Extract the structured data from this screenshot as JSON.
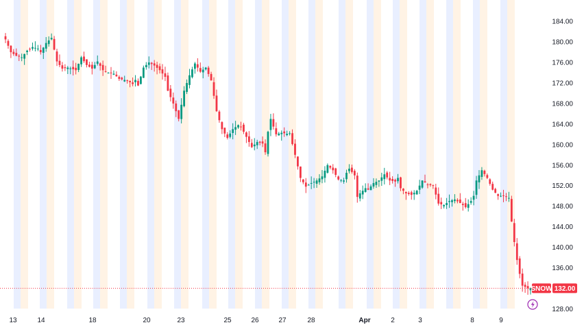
{
  "chart_data": {
    "type": "candlestick",
    "symbol": "SNOW",
    "last_price": 132.0,
    "last_price_label": "132.00",
    "ylim": [
      126.5,
      185.5
    ],
    "y_ticks": [
      128,
      132,
      136,
      140,
      144,
      148,
      152,
      156,
      160,
      164,
      168,
      172,
      176,
      180,
      184
    ],
    "y_tick_labels": [
      "128.00",
      "132.00",
      "136.00",
      "140.00",
      "144.00",
      "148.00",
      "152.00",
      "156.00",
      "160.00",
      "164.00",
      "168.00",
      "172.00",
      "176.00",
      "180.00",
      "184.00"
    ],
    "x_tick_labels": [
      "13",
      "14",
      "18",
      "20",
      "23",
      "25",
      "26",
      "27",
      "28",
      "Apr",
      "2",
      "3",
      "8",
      "9"
    ],
    "x_tick_emphasis": [
      false,
      false,
      false,
      false,
      false,
      false,
      false,
      false,
      false,
      true,
      false,
      false,
      false,
      false
    ],
    "price_anchors": [
      [
        0,
        180.5
      ],
      [
        2,
        178.0
      ],
      [
        4,
        177.3
      ],
      [
        6,
        177.0
      ],
      [
        8,
        178.3
      ],
      [
        10,
        179.0
      ],
      [
        12,
        178.7
      ],
      [
        13,
        178.0
      ],
      [
        15,
        179.8
      ],
      [
        17,
        180.8
      ],
      [
        19,
        176.2
      ],
      [
        21,
        174.8
      ],
      [
        23,
        175.0
      ],
      [
        26,
        174.5
      ],
      [
        28,
        177.0
      ],
      [
        30,
        175.5
      ],
      [
        32,
        174.8
      ],
      [
        34,
        176.2
      ],
      [
        36,
        174.5
      ],
      [
        38,
        174.0
      ],
      [
        40,
        173.8
      ],
      [
        42,
        172.8
      ],
      [
        45,
        172.5
      ],
      [
        47,
        171.8
      ],
      [
        48,
        172.6
      ],
      [
        49,
        171.5
      ],
      [
        51,
        175.0
      ],
      [
        53,
        176.0
      ],
      [
        55,
        175.4
      ],
      [
        57,
        174.5
      ],
      [
        59,
        173.2
      ],
      [
        60,
        170.5
      ],
      [
        62,
        168.0
      ],
      [
        64,
        165.0
      ],
      [
        66,
        170.5
      ],
      [
        68,
        173.5
      ],
      [
        70,
        175.8
      ],
      [
        72,
        174.2
      ],
      [
        74,
        175.0
      ],
      [
        76,
        172.5
      ],
      [
        78,
        166.5
      ],
      [
        80,
        163.0
      ],
      [
        82,
        161.3
      ],
      [
        84,
        163.0
      ],
      [
        86,
        163.8
      ],
      [
        87,
        163.5
      ],
      [
        89,
        161.5
      ],
      [
        91,
        159.5
      ],
      [
        93,
        160.5
      ],
      [
        95,
        160.2
      ],
      [
        96,
        158.5
      ],
      [
        97,
        162.5
      ],
      [
        98,
        165.0
      ],
      [
        100,
        162.0
      ],
      [
        102,
        162.3
      ],
      [
        104,
        162.1
      ],
      [
        105,
        162.2
      ],
      [
        107,
        158.0
      ],
      [
        109,
        153.5
      ],
      [
        111,
        151.8
      ],
      [
        113,
        152.5
      ],
      [
        115,
        153.0
      ],
      [
        117,
        153.8
      ],
      [
        119,
        156.0
      ],
      [
        121,
        155.0
      ],
      [
        123,
        153.2
      ],
      [
        125,
        153.0
      ],
      [
        126,
        154.5
      ],
      [
        127,
        155.3
      ],
      [
        129,
        154.0
      ],
      [
        130,
        149.8
      ],
      [
        131,
        150.5
      ],
      [
        133,
        151.5
      ],
      [
        134,
        151.2
      ],
      [
        136,
        152.5
      ],
      [
        138,
        153.0
      ],
      [
        140,
        154.2
      ],
      [
        142,
        153.0
      ],
      [
        144,
        152.8
      ],
      [
        145,
        153.5
      ],
      [
        146,
        151.5
      ],
      [
        148,
        150.5
      ],
      [
        150,
        150.2
      ],
      [
        152,
        151.0
      ],
      [
        154,
        153.0
      ],
      [
        156,
        152.2
      ],
      [
        158,
        152.0
      ],
      [
        160,
        148.5
      ],
      [
        162,
        148.2
      ],
      [
        164,
        149.0
      ],
      [
        166,
        149.3
      ],
      [
        168,
        148.6
      ],
      [
        170,
        147.8
      ],
      [
        172,
        149.0
      ],
      [
        173,
        150.0
      ],
      [
        174,
        153.0
      ],
      [
        176,
        155.0
      ],
      [
        178,
        153.5
      ],
      [
        180,
        151.2
      ],
      [
        182,
        150.0
      ],
      [
        184,
        150.0
      ],
      [
        186,
        149.6
      ],
      [
        187,
        145.0
      ],
      [
        188,
        141.0
      ],
      [
        189,
        137.5
      ],
      [
        190,
        134.8
      ],
      [
        191,
        132.5
      ],
      [
        193,
        132.0
      ],
      [
        194,
        132.0
      ]
    ],
    "grid": false,
    "session_bands": true,
    "legend": "none"
  },
  "icons": {
    "replay": "lightning-bolt-icon"
  },
  "colors": {
    "up": "#089981",
    "down": "#f23645",
    "price_tag": "#f23645",
    "symbol_tag": "#f23645",
    "band_blue": "#e9efff",
    "band_orange": "#fff3e5",
    "replay_icon": "#9c27b0",
    "axis_text": "#131722"
  }
}
